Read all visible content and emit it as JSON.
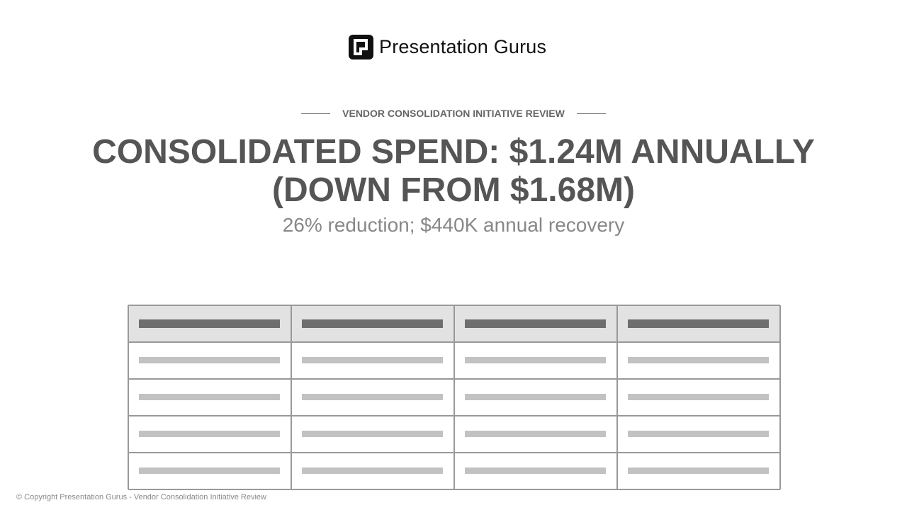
{
  "header": {
    "logo": "Presentation Gurus"
  },
  "eyebrow": "VENDOR CONSOLIDATION INITIATIVE REVIEW",
  "title": "CONSOLIDATED SPEND: $1.24M ANNUALLY (DOWN FROM $1.68M)",
  "subtitle": "26% reduction; $440K annual recovery",
  "footer": "© Copyright Presentation Gurus - Vendor Consolidation Initiative Review"
}
